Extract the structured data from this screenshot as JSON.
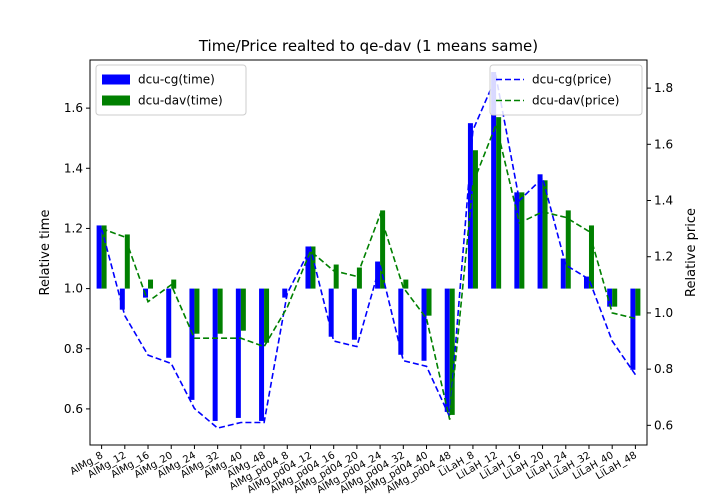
{
  "chart_data": {
    "type": "bar",
    "title": "Time/Price realted to qe-dav (1 means same)",
    "ylabel": "Relative time",
    "y2label": "Relative price",
    "ylim": [
      0.48,
      1.76
    ],
    "y2lim": [
      0.53,
      1.9
    ],
    "yticks": [
      0.6,
      0.8,
      1.0,
      1.2,
      1.4,
      1.6
    ],
    "y2ticks": [
      0.6,
      0.8,
      1.0,
      1.2,
      1.4,
      1.6,
      1.8
    ],
    "bar_baseline": 1.0,
    "categories": [
      "AlMg_8",
      "AlMg_12",
      "AlMg_16",
      "AlMg_20",
      "AlMg_24",
      "AlMg_32",
      "AlMg_40",
      "AlMg_48",
      "AlMg_pd04_8",
      "AlMg_pd04_12",
      "AlMg_pd04_16",
      "AlMg_pd04_20",
      "AlMg_pd04_24",
      "AlMg_pd04_32",
      "AlMg_pd04_40",
      "AlMg_pd04_48",
      "LiLaH_8",
      "LiLaH_12",
      "LiLaH_16",
      "LiLaH_20",
      "LiLaH_24",
      "LiLaH_32",
      "LiLaH_40",
      "LiLaH_48"
    ],
    "tick_labels": [
      "AlMg_8",
      "AlMg_12",
      "AlMg_16",
      "AlMg_20",
      "AlMg_24",
      "AlMg_32",
      "AlMg_40",
      "AlMg_48",
      "AlMg_pd04_8",
      "AlMg_pd04_12",
      "AlMg_pd04_16",
      "AlMg_pd04_20",
      "AlMg_pd04_24",
      "AlMg_pd04_32",
      "AlMg_pd04_40",
      "AlMg_pd04_48",
      "LiLaH_8",
      "LiLaH_12",
      "LiLaH_16",
      "LiLaH_20",
      "LiLaH_24",
      "LiLaH_32",
      "LiLaH_40",
      "LiLaH_48"
    ],
    "series": [
      {
        "name": "dcu-cg(time)",
        "kind": "bar",
        "axis": "left",
        "color": "#0000ff",
        "values": [
          1.21,
          0.93,
          0.97,
          0.77,
          0.63,
          0.56,
          0.57,
          0.56,
          0.97,
          1.14,
          0.84,
          0.83,
          1.09,
          0.78,
          0.76,
          0.59,
          1.55,
          1.72,
          1.32,
          1.38,
          1.1,
          1.04,
          0.94,
          0.73
        ]
      },
      {
        "name": "dcu-dav(time)",
        "kind": "bar",
        "axis": "left",
        "color": "#008000",
        "values": [
          1.21,
          1.18,
          1.03,
          1.03,
          0.85,
          0.85,
          0.86,
          0.82,
          1.0,
          1.14,
          1.08,
          1.07,
          1.26,
          1.03,
          0.91,
          0.58,
          1.46,
          1.57,
          1.32,
          1.36,
          1.26,
          1.21,
          0.94,
          0.91
        ]
      },
      {
        "name": "dcu-cg(price)",
        "kind": "line",
        "axis": "right",
        "color": "#0000ff",
        "style": "dashed",
        "values": [
          1.3,
          0.99,
          0.85,
          0.82,
          0.66,
          0.59,
          0.61,
          0.61,
          1.07,
          1.23,
          0.9,
          0.88,
          1.17,
          0.83,
          0.81,
          0.63,
          1.65,
          1.84,
          1.4,
          1.48,
          1.17,
          1.12,
          0.9,
          0.78
        ]
      },
      {
        "name": "dcu-dav(price)",
        "kind": "line",
        "axis": "right",
        "color": "#008000",
        "style": "dashed",
        "values": [
          1.3,
          1.27,
          1.04,
          1.1,
          0.91,
          0.91,
          0.91,
          0.88,
          1.02,
          1.22,
          1.15,
          1.13,
          1.35,
          1.09,
          0.98,
          0.62,
          1.46,
          1.67,
          1.32,
          1.36,
          1.34,
          1.29,
          1.0,
          0.98
        ]
      }
    ],
    "legend_left_placement": "top-left",
    "legend_right_placement": "top-right",
    "grid": false
  }
}
